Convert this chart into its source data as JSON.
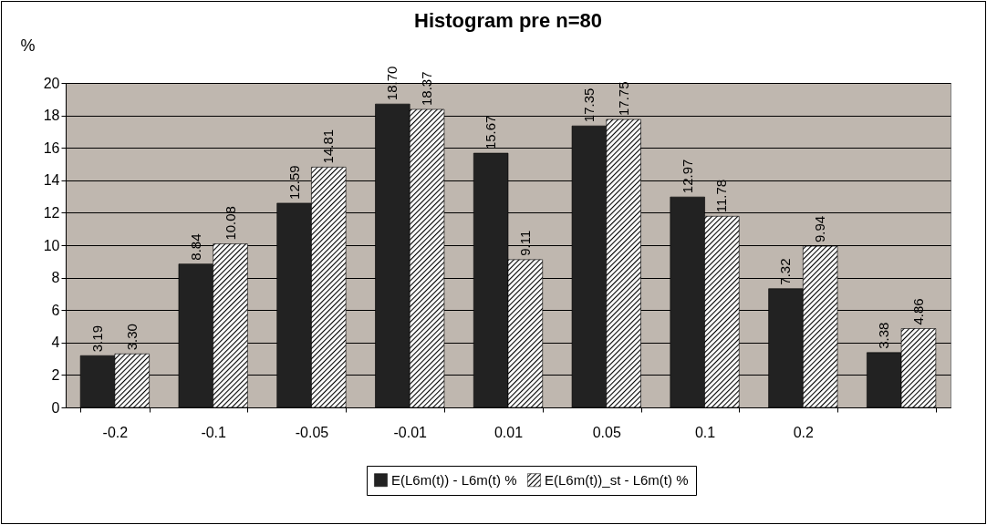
{
  "chart_data": {
    "type": "bar",
    "title": "Histogram pre n=80",
    "ylabel": "%",
    "categories": [
      "-0.2",
      "-0.1",
      "-0.05",
      "-0.01",
      "0.01",
      "0.05",
      "0.1",
      "0.2",
      null
    ],
    "series": [
      {
        "name": "E(L6m(t)) - L6m(t) %",
        "color": "#222222",
        "values": [
          3.19,
          8.84,
          12.59,
          18.7,
          15.67,
          17.35,
          12.97,
          7.32,
          3.38
        ],
        "value_labels": [
          "3.19",
          "8.84",
          "12.59",
          "18.70",
          "15.67",
          "17.35",
          "12.97",
          "7.32",
          "3.38"
        ]
      },
      {
        "name": "E(L6m(t))_st - L6m(t) %",
        "color": "#000000",
        "values": [
          3.3,
          10.08,
          14.81,
          18.37,
          9.11,
          17.75,
          11.78,
          9.94,
          4.86
        ],
        "value_labels": [
          "3.30",
          "10.08",
          "14.81",
          "18.37",
          "9.11",
          "17.75",
          "11.78",
          "9.94",
          "4.86"
        ]
      }
    ],
    "ylim": [
      0,
      20
    ],
    "yticks": [
      0,
      2,
      4,
      6,
      8,
      10,
      12,
      14,
      16,
      18,
      20
    ],
    "grid": "y",
    "legend": "bottom"
  }
}
